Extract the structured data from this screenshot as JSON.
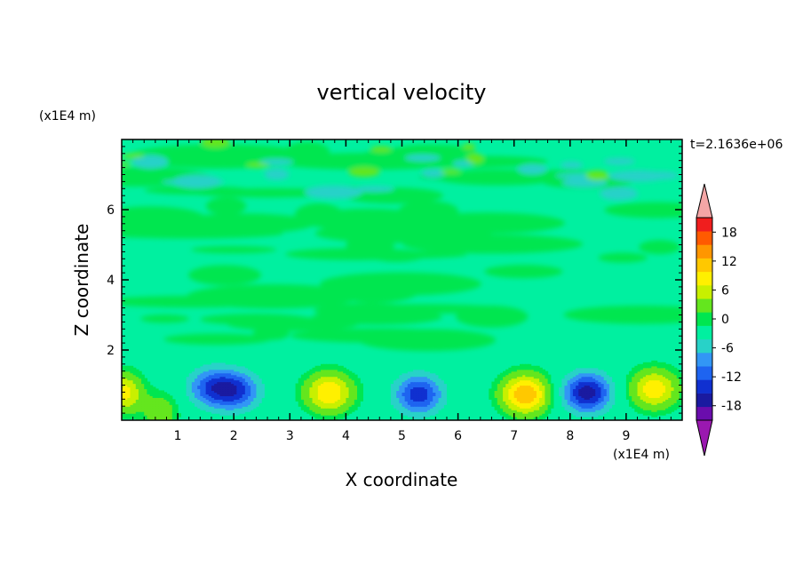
{
  "chart_data": {
    "type": "heatmap",
    "title": "vertical velocity",
    "xlabel": "X coordinate",
    "ylabel": "Z coordinate",
    "x_unit": "(x1E4 m)",
    "y_unit": "(x1E4 m)",
    "time_label": "t=2.1636e+06",
    "xlim": [
      0,
      10
    ],
    "ylim": [
      0,
      8
    ],
    "xticks": [
      1,
      2,
      3,
      4,
      5,
      6,
      7,
      8,
      9
    ],
    "yticks": [
      2,
      4,
      6
    ],
    "colorbar": {
      "levels": [
        -21,
        -18,
        -15,
        -12,
        -9,
        -6,
        -3,
        0,
        3,
        6,
        9,
        12,
        15,
        18,
        21
      ],
      "tick_values": [
        -18,
        -12,
        -6,
        0,
        6,
        12,
        18
      ],
      "tick_labels": [
        "-18",
        "-12",
        "-6",
        "0",
        "6",
        "12",
        "18"
      ],
      "colors": [
        "#6a0dad",
        "#1a1aa0",
        "#1030d0",
        "#1e64f0",
        "#3296f5",
        "#28d2c8",
        "#00f0a0",
        "#00e650",
        "#64e61e",
        "#c8f000",
        "#fff000",
        "#ffc800",
        "#ff9600",
        "#ff5a00",
        "#f01e1e"
      ],
      "under_color": "#9a18b0",
      "over_color": "#f4a6a6"
    },
    "features": [
      {
        "kind": "updraft",
        "x": 0.05,
        "z": 0.8,
        "value": 10
      },
      {
        "kind": "updraft",
        "x": 0.7,
        "z": 0.25,
        "value": 5
      },
      {
        "kind": "downdraft",
        "x": 1.6,
        "z": 0.95,
        "value": -11
      },
      {
        "kind": "downdraft",
        "x": 2.05,
        "z": 0.85,
        "value": -12
      },
      {
        "kind": "updraft",
        "x": 3.7,
        "z": 0.8,
        "value": 12
      },
      {
        "kind": "downdraft",
        "x": 5.3,
        "z": 0.75,
        "value": -14
      },
      {
        "kind": "updraft",
        "x": 7.2,
        "z": 0.75,
        "value": 15
      },
      {
        "kind": "downdraft",
        "x": 8.3,
        "z": 0.8,
        "value": -17
      },
      {
        "kind": "updraft",
        "x": 9.5,
        "z": 0.9,
        "value": 11
      }
    ]
  }
}
